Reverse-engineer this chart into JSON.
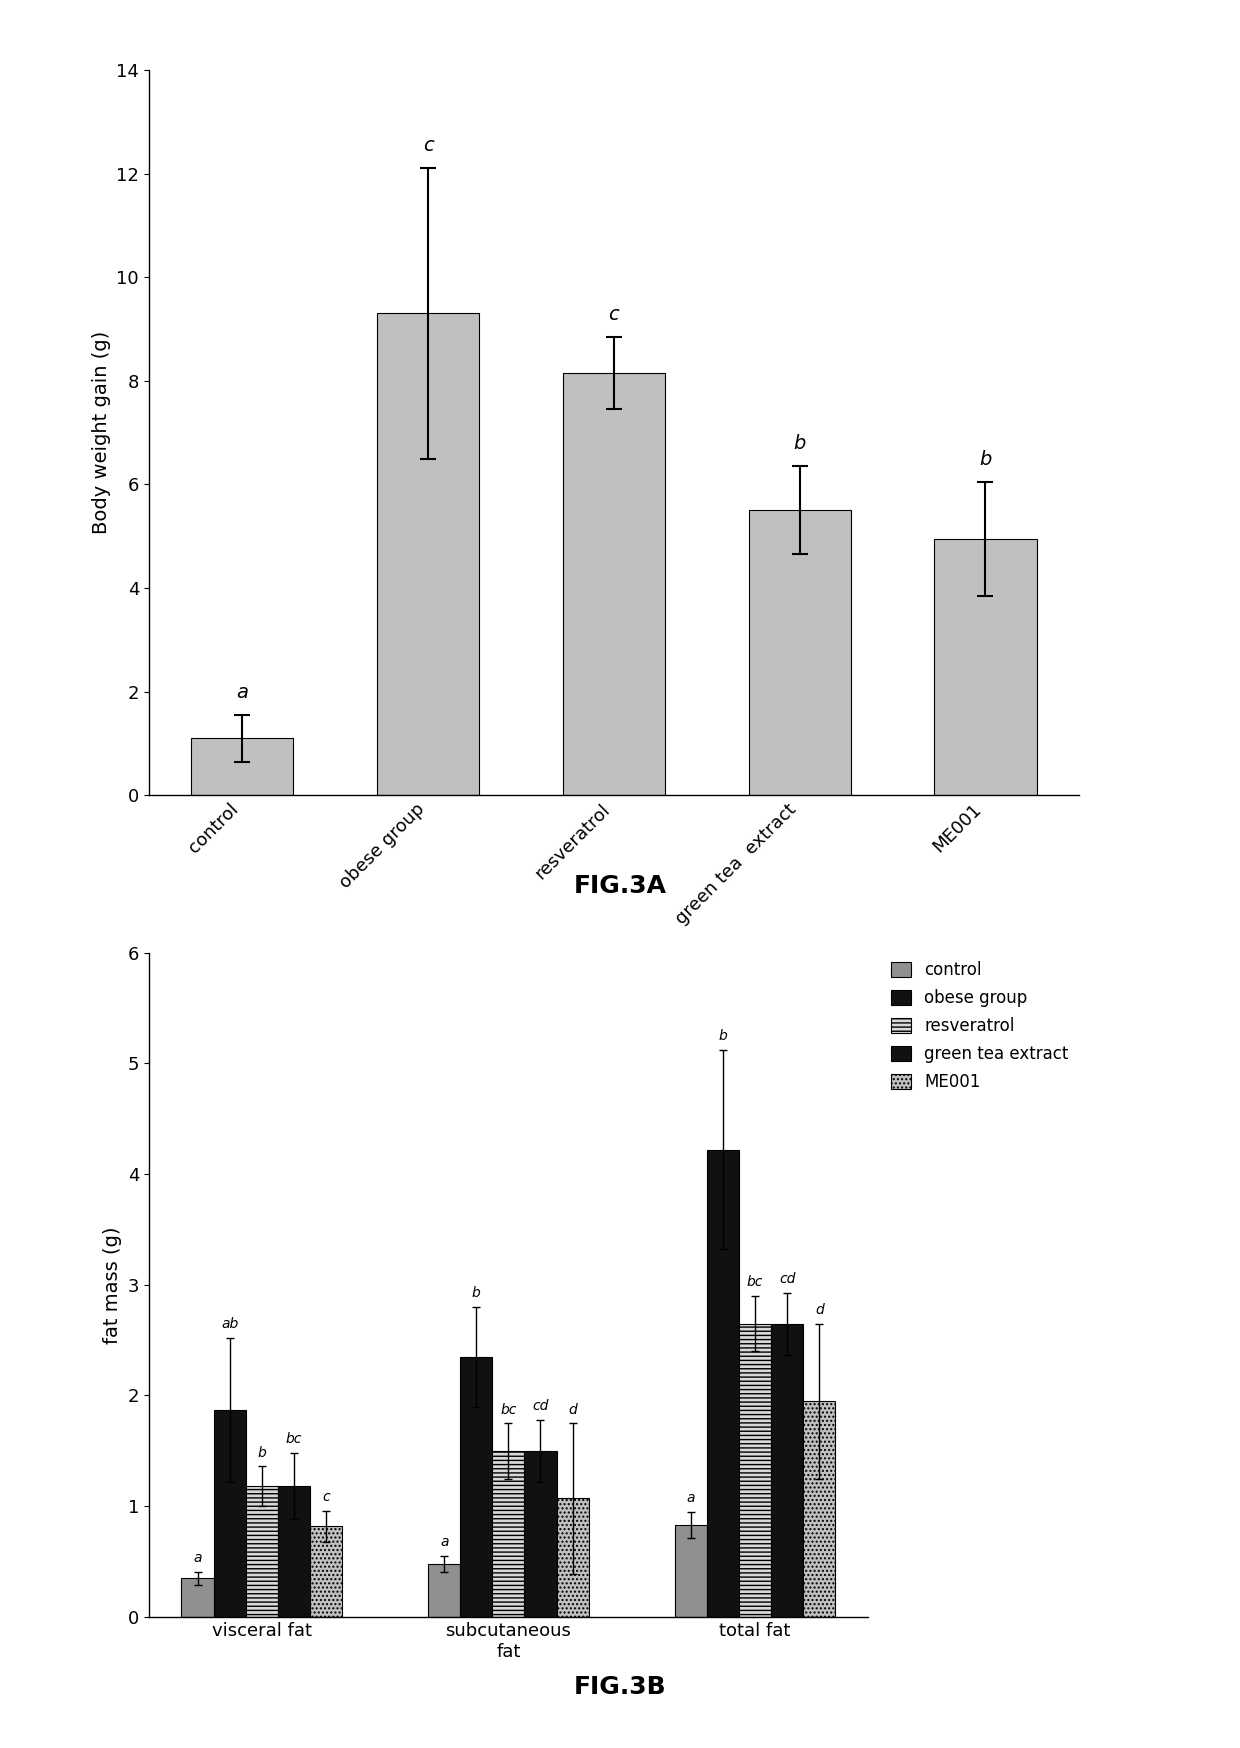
{
  "fig3a": {
    "categories": [
      "control",
      "obese group",
      "resveratrol",
      "green tea  extract",
      "ME001"
    ],
    "values": [
      1.1,
      9.3,
      8.15,
      5.5,
      4.95
    ],
    "errors": [
      0.45,
      2.8,
      0.7,
      0.85,
      1.1
    ],
    "bar_color": "#c0c0c0",
    "bar_edgecolor": "#000000",
    "ylabel": "Body weight gain (g)",
    "ylim": [
      0,
      14
    ],
    "yticks": [
      0,
      2,
      4,
      6,
      8,
      10,
      12,
      14
    ],
    "stat_labels": [
      "a",
      "c",
      "c",
      "b",
      "b"
    ],
    "title": "FIG.3A",
    "title_fontsize": 18,
    "label_fontsize": 14,
    "tick_fontsize": 13
  },
  "fig3b": {
    "groups": [
      "visceral fat",
      "subcutaneous\nfat",
      "total fat"
    ],
    "series": [
      "control",
      "obese group",
      "resveratrol",
      "green tea extract",
      "ME001"
    ],
    "values": [
      [
        0.35,
        1.87,
        1.18,
        1.18,
        0.82
      ],
      [
        0.48,
        2.35,
        1.5,
        1.5,
        1.07
      ],
      [
        0.83,
        4.22,
        2.65,
        2.65,
        1.95
      ]
    ],
    "errors": [
      [
        0.06,
        0.65,
        0.18,
        0.3,
        0.14
      ],
      [
        0.07,
        0.45,
        0.25,
        0.28,
        0.68
      ],
      [
        0.12,
        0.9,
        0.25,
        0.28,
        0.7
      ]
    ],
    "stat_labels": [
      [
        "a",
        "ab",
        "b",
        "bc",
        "c"
      ],
      [
        "a",
        "b",
        "bc",
        "cd",
        "d"
      ],
      [
        "a",
        "b",
        "bc",
        "cd",
        "d"
      ]
    ],
    "ylabel": "fat mass (g)",
    "ylim": [
      0,
      6
    ],
    "yticks": [
      0,
      1,
      2,
      3,
      4,
      5,
      6
    ],
    "title": "FIG.3B",
    "legend_labels": [
      "control",
      "obese group",
      "resveratrol",
      "green tea extract",
      "ME001"
    ],
    "title_fontsize": 18,
    "label_fontsize": 14,
    "tick_fontsize": 13
  },
  "background_color": "#ffffff"
}
